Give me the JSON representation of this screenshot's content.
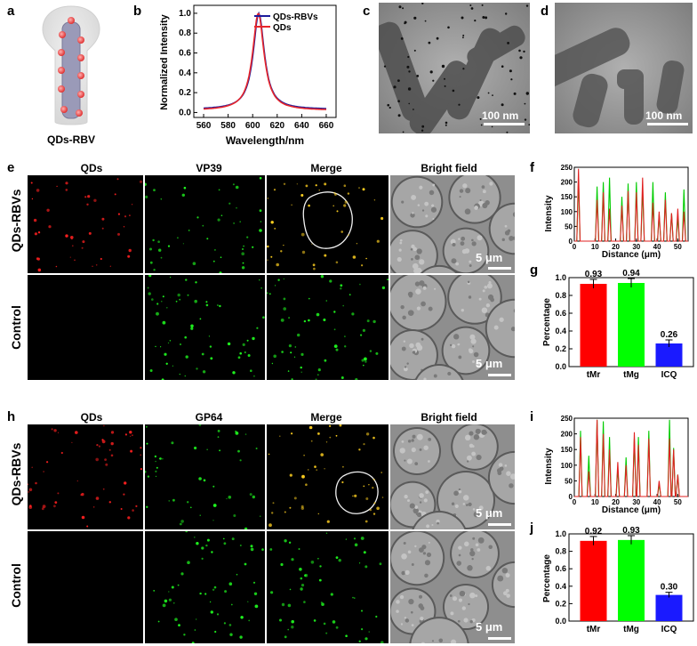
{
  "labels": {
    "a": "a",
    "b": "b",
    "c": "c",
    "d": "d",
    "e": "e",
    "f": "f",
    "g": "g",
    "h": "h",
    "i": "i",
    "j": "j"
  },
  "panel_a": {
    "caption": "QDs-RBV"
  },
  "panel_c": {
    "scale": "100 nm"
  },
  "panel_d": {
    "scale": "100 nm"
  },
  "panel_e": {
    "columns": [
      "QDs",
      "VP39",
      "Merge",
      "Bright field"
    ],
    "rows": [
      "QDs-RBVs",
      "Control"
    ],
    "scale": "5 μm"
  },
  "panel_h": {
    "columns": [
      "QDs",
      "GP64",
      "Merge",
      "Bright field"
    ],
    "rows": [
      "QDs-RBVs",
      "Control"
    ],
    "scale": "5 μm"
  },
  "colors": {
    "red": "#ff0000",
    "green": "#00ff00",
    "blue": "#1a1aff",
    "navy": "#1c1c9c",
    "crimson": "#e8252a"
  },
  "chart_data": [
    {
      "id": "b",
      "type": "line",
      "xlabel": "Wavelength/nm",
      "ylabel": "Normalized Intensity",
      "xlim": [
        552,
        668
      ],
      "ylim": [
        -0.05,
        1.08
      ],
      "xticks": [
        560,
        580,
        600,
        620,
        640,
        660
      ],
      "yticks": [
        0.0,
        0.2,
        0.4,
        0.6,
        0.8,
        1.0
      ],
      "legend_position": "top-right",
      "series": [
        {
          "name": "QDs-RBVs",
          "color": "#1c1c9c",
          "center": 605,
          "width": 11,
          "baseline": 0.03
        },
        {
          "name": "QDs",
          "color": "#e8252a",
          "center": 604.6,
          "width": 11.3,
          "baseline": 0.02
        }
      ]
    },
    {
      "id": "g",
      "type": "bar",
      "ylabel": "Percentage",
      "ylim": [
        0.0,
        1.0
      ],
      "yticks": [
        0.0,
        0.2,
        0.4,
        0.6,
        0.8,
        1.0
      ],
      "categories": [
        "tMr",
        "tMg",
        "ICQ"
      ],
      "values": [
        0.93,
        0.94,
        0.26
      ],
      "value_labels": [
        "0.93",
        "0.94",
        "0.26"
      ],
      "errors": [
        0.05,
        0.05,
        0.04
      ],
      "colors": [
        "#ff0000",
        "#00ff00",
        "#1a1aff"
      ]
    },
    {
      "id": "j",
      "type": "bar",
      "ylabel": "Percentage",
      "ylim": [
        0.0,
        1.0
      ],
      "yticks": [
        0.0,
        0.2,
        0.4,
        0.6,
        0.8,
        1.0
      ],
      "categories": [
        "tMr",
        "tMg",
        "ICQ"
      ],
      "values": [
        0.92,
        0.93,
        0.3
      ],
      "value_labels": [
        "0.92",
        "0.93",
        "0.30"
      ],
      "errors": [
        0.05,
        0.05,
        0.03
      ],
      "colors": [
        "#ff0000",
        "#00ff00",
        "#1a1aff"
      ]
    },
    {
      "id": "f",
      "type": "line",
      "xlabel": "Distance (μm)",
      "ylabel": "Intensity",
      "xlim": [
        0,
        55
      ],
      "ylim": [
        0,
        250
      ],
      "xticks": [
        0,
        10,
        20,
        30,
        40,
        50
      ],
      "yticks": [
        0,
        50,
        100,
        150,
        200,
        250
      ],
      "series": [
        {
          "name": "",
          "color": "#00cc00",
          "peaks": [
            [
              2,
              210
            ],
            [
              11,
              185
            ],
            [
              14,
              200
            ],
            [
              17,
              215
            ],
            [
              23,
              150
            ],
            [
              26,
              195
            ],
            [
              30,
              200
            ],
            [
              33,
              175
            ],
            [
              38,
              200
            ],
            [
              41,
              90
            ],
            [
              44,
              165
            ],
            [
              47,
              95
            ],
            [
              50,
              80
            ],
            [
              53,
              175
            ]
          ]
        },
        {
          "name": "",
          "color": "#e02020",
          "peaks": [
            [
              2,
              245
            ],
            [
              11,
              140
            ],
            [
              14,
              165
            ],
            [
              17,
              110
            ],
            [
              23,
              120
            ],
            [
              26,
              170
            ],
            [
              30,
              165
            ],
            [
              33,
              215
            ],
            [
              38,
              130
            ],
            [
              41,
              100
            ],
            [
              44,
              140
            ],
            [
              47,
              95
            ],
            [
              50,
              110
            ],
            [
              53,
              100
            ]
          ]
        }
      ]
    },
    {
      "id": "i",
      "type": "line",
      "xlabel": "Distance (μm)",
      "ylabel": "Intensity",
      "xlim": [
        0,
        55
      ],
      "ylim": [
        0,
        250
      ],
      "xticks": [
        0,
        10,
        20,
        30,
        40,
        50
      ],
      "yticks": [
        0,
        50,
        100,
        150,
        200,
        250
      ],
      "series": [
        {
          "name": "",
          "color": "#00cc00",
          "peaks": [
            [
              3,
              210
            ],
            [
              7,
              130
            ],
            [
              11,
              245
            ],
            [
              14,
              240
            ],
            [
              17,
              190
            ],
            [
              21,
              90
            ],
            [
              25,
              125
            ],
            [
              29,
              185
            ],
            [
              31,
              190
            ],
            [
              36,
              210
            ],
            [
              41,
              40
            ],
            [
              46,
              245
            ],
            [
              48,
              155
            ],
            [
              50,
              70
            ]
          ]
        },
        {
          "name": "",
          "color": "#e02020",
          "peaks": [
            [
              3,
              190
            ],
            [
              7,
              80
            ],
            [
              11,
              245
            ],
            [
              14,
              200
            ],
            [
              17,
              150
            ],
            [
              21,
              110
            ],
            [
              25,
              100
            ],
            [
              29,
              205
            ],
            [
              31,
              165
            ],
            [
              36,
              185
            ],
            [
              41,
              50
            ],
            [
              46,
              185
            ],
            [
              48,
              150
            ],
            [
              50,
              70
            ]
          ]
        }
      ]
    }
  ]
}
